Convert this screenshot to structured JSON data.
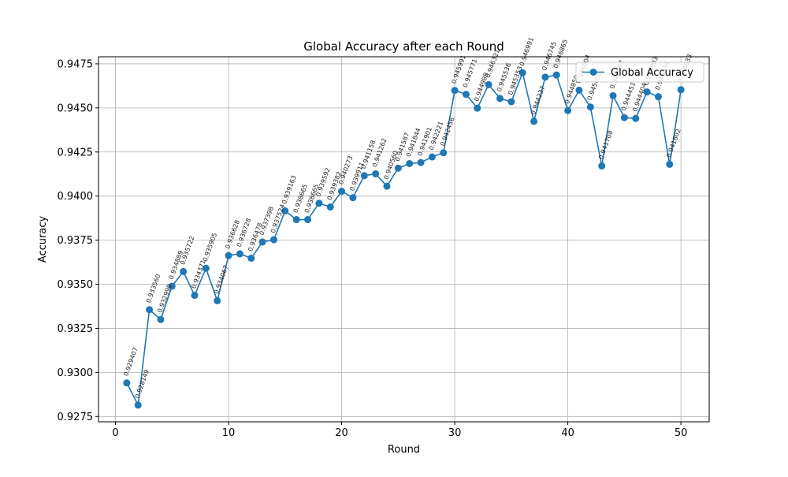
{
  "chart_data": {
    "type": "line",
    "title": "Global Accuracy after each Round",
    "xlabel": "Round",
    "ylabel": "Accuracy",
    "xlim": [
      -1.5,
      52.5
    ],
    "ylim": [
      0.9272,
      0.9479
    ],
    "xticks": [
      0,
      10,
      20,
      30,
      40,
      50
    ],
    "yticks": [
      0.9275,
      0.93,
      0.9325,
      0.935,
      0.9375,
      0.94,
      0.9425,
      0.945,
      0.9475
    ],
    "ytick_labels": [
      "0.9275",
      "0.9300",
      "0.9325",
      "0.9350",
      "0.9375",
      "0.9400",
      "0.9425",
      "0.9450",
      "0.9475"
    ],
    "grid": true,
    "legend_position": "top-right",
    "series": [
      {
        "name": "Global Accuracy",
        "color": "#1f77b4",
        "marker": "circle",
        "x": [
          1,
          2,
          3,
          4,
          5,
          6,
          7,
          8,
          9,
          10,
          11,
          12,
          13,
          14,
          15,
          16,
          17,
          18,
          19,
          20,
          21,
          22,
          23,
          24,
          25,
          26,
          27,
          28,
          29,
          30,
          31,
          32,
          33,
          34,
          35,
          36,
          37,
          38,
          39,
          40,
          41,
          42,
          43,
          44,
          45,
          46,
          47,
          48,
          49,
          50
        ],
        "values": [
          0.929407,
          0.928149,
          0.93356,
          0.932999,
          0.934889,
          0.935722,
          0.934371,
          0.935905,
          0.934067,
          0.936628,
          0.936728,
          0.936478,
          0.937398,
          0.937524,
          0.939163,
          0.938665,
          0.938665,
          0.939592,
          0.939382,
          0.940273,
          0.939911,
          0.941158,
          0.941262,
          0.94056,
          0.941587,
          0.941844,
          0.941901,
          0.942221,
          0.942456,
          0.945991,
          0.945771,
          0.944988,
          0.946321,
          0.945536,
          0.945353,
          0.946991,
          0.944237,
          0.946745,
          0.946865,
          0.94485,
          0.946004,
          0.94505,
          0.941708,
          0.945697,
          0.944451,
          0.944404,
          0.945903,
          0.945634,
          0.941802,
          0.946033
        ],
        "labels": [
          "0.929407",
          "0.928149",
          "0.933560",
          "0.932999",
          "0.934889",
          "0.935722",
          "0.934371",
          "0.935905",
          "0.934067",
          "0.936628",
          "0.936728",
          "0.936478",
          "0.937398",
          "0.937524",
          "0.939163",
          "0.938665",
          "0.938665",
          "0.939592",
          "0.939382",
          "0.940273",
          "0.939911",
          "0.941158",
          "0.941262",
          "0.940560",
          "0.941587",
          "0.941844",
          "0.941901",
          "0.942221",
          "0.942456",
          "0.945991",
          "0.945771",
          "0.944988",
          "0.946321",
          "0.945536",
          "0.945353",
          "0.946991",
          "0.944237",
          "0.946745",
          "0.946865",
          "0.944850",
          "0.946004",
          "0.945050",
          "0.941708",
          "0.945697",
          "0.944451",
          "0.944404",
          "0.945903",
          "0.945634",
          "0.941802",
          "0.946033"
        ]
      }
    ]
  }
}
